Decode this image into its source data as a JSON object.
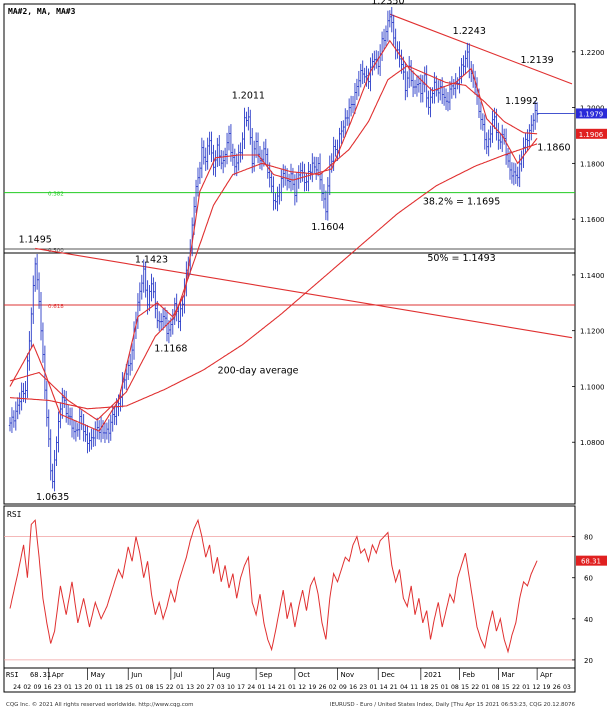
{
  "chart_data": {
    "type": "line",
    "instrument": "EURUSD",
    "header_label": "MA#2,  MA,  MA#3",
    "footer_left": "CQG Inc. © 2021 All rights reserved worldwide. http://www.cqg.com",
    "footer_right": "IEURUSD - Euro / United States Index, Daily [Thu Apr 15 2021 06:53:23, CQG 20.12.8076",
    "price_axis": {
      "ylim": [
        1.06,
        1.235
      ],
      "ticks": [
        "1.2200",
        "1.2000",
        "1.1800",
        "1.1600",
        "1.1400",
        "1.1200",
        "1.1000",
        "1.0800"
      ],
      "tick_values": [
        1.22,
        1.2,
        1.18,
        1.16,
        1.14,
        1.12,
        1.1,
        1.08
      ],
      "current_price_tag": "1.1979",
      "ma_tag": "1.1906",
      "current_price_value": 1.1979,
      "ma_value": 1.1906
    },
    "rsi_axis": {
      "label": "RSI",
      "ylim": [
        18,
        92
      ],
      "ticks": [
        "80",
        "60",
        "40",
        "20"
      ],
      "tick_values": [
        80,
        60,
        40,
        20
      ],
      "current_tag": "68.31",
      "current_value": 68.31,
      "bottom_left_label": "RSI",
      "bottom_left_value": "68.31"
    },
    "time_axis": {
      "n_days": 290,
      "months": [
        {
          "label": "Apr",
          "day": 20
        },
        {
          "label": "May",
          "day": 40
        },
        {
          "label": "Jun",
          "day": 61
        },
        {
          "label": "Jul",
          "day": 83
        },
        {
          "label": "Aug",
          "day": 105
        },
        {
          "label": "Sep",
          "day": 127
        },
        {
          "label": "Oct",
          "day": 147
        },
        {
          "label": "Nov",
          "day": 169
        },
        {
          "label": "Dec",
          "day": 190
        },
        {
          "label": "2021",
          "day": 212
        },
        {
          "label": "Feb",
          "day": 232
        },
        {
          "label": "Mar",
          "day": 252
        },
        {
          "label": "Apr",
          "day": 272
        }
      ],
      "day_labels": [
        "24",
        "02",
        "09",
        "16",
        "23",
        "01",
        "13",
        "20",
        "01",
        "11",
        "18",
        "25",
        "01",
        "08",
        "15",
        "22",
        "01",
        "13",
        "20",
        "27",
        "03",
        "10",
        "17",
        "24",
        "01",
        "14",
        "21",
        "01",
        "12",
        "19",
        "26",
        "02",
        "09",
        "16",
        "23",
        "01",
        "14",
        "21",
        "04",
        "11",
        "18",
        "25",
        "01",
        "08",
        "15",
        "22",
        "01",
        "08",
        "15",
        "22",
        "01",
        "12",
        "19",
        "26",
        "03"
      ]
    },
    "annotations": [
      {
        "text": "1.2350",
        "day": 195,
        "price": 1.235,
        "pos": "above"
      },
      {
        "text": "1.2243",
        "day": 237,
        "price": 1.2243,
        "pos": "above"
      },
      {
        "text": "1.2139",
        "day": 272,
        "price": 1.2139,
        "pos": "above"
      },
      {
        "text": "1.2011",
        "day": 123,
        "price": 1.2011,
        "pos": "above"
      },
      {
        "text": "1.1992",
        "day": 264,
        "price": 1.1992,
        "pos": "above"
      },
      {
        "text": "1.1860",
        "day": 269,
        "price": 1.186,
        "pos": "right"
      },
      {
        "text": "1.1604",
        "day": 164,
        "price": 1.1604,
        "pos": "below"
      },
      {
        "text": "38.2% = 1.1695",
        "day": 233,
        "price": 1.1695,
        "pos": "below"
      },
      {
        "text": "1.1495",
        "day": 13,
        "price": 1.1495,
        "pos": "above"
      },
      {
        "text": "1.1423",
        "day": 73,
        "price": 1.1423,
        "pos": "above"
      },
      {
        "text": "50% = 1.1493",
        "day": 233,
        "price": 1.1493,
        "pos": "below"
      },
      {
        "text": "1.1168",
        "day": 83,
        "price": 1.1168,
        "pos": "below"
      },
      {
        "text": "200-day average",
        "day": 128,
        "price": 1.1057,
        "pos": "center"
      },
      {
        "text": "1.0635",
        "day": 22,
        "price": 1.0635,
        "pos": "below"
      }
    ],
    "fib_lines": [
      {
        "label": "0.382",
        "price": 1.1695,
        "color": "#22cc22"
      },
      {
        "label": "0.500",
        "price": 1.1493,
        "color": "#555555"
      },
      {
        "label": "0.618",
        "price": 1.1292,
        "color": "#dd3333"
      }
    ],
    "trendlines": [
      {
        "name": "upper-downtrend",
        "from": {
          "day": 196,
          "price": 1.2335
        },
        "to": {
          "day": 290,
          "price": 1.2085
        }
      },
      {
        "name": "long-downtrend",
        "from": {
          "day": 13,
          "price": 1.1495
        },
        "to": {
          "day": 290,
          "price": 1.1175
        }
      }
    ],
    "price_anchors": [
      [
        0,
        1.086
      ],
      [
        4,
        1.093
      ],
      [
        8,
        1.1
      ],
      [
        11,
        1.125
      ],
      [
        13,
        1.146
      ],
      [
        15,
        1.13
      ],
      [
        17,
        1.11
      ],
      [
        19,
        1.09
      ],
      [
        21,
        1.07
      ],
      [
        22,
        1.065
      ],
      [
        24,
        1.082
      ],
      [
        27,
        1.096
      ],
      [
        30,
        1.09
      ],
      [
        33,
        1.083
      ],
      [
        36,
        1.088
      ],
      [
        39,
        1.082
      ],
      [
        42,
        1.08
      ],
      [
        45,
        1.086
      ],
      [
        48,
        1.083
      ],
      [
        51,
        1.085
      ],
      [
        54,
        1.09
      ],
      [
        57,
        1.097
      ],
      [
        60,
        1.105
      ],
      [
        63,
        1.112
      ],
      [
        65,
        1.125
      ],
      [
        67,
        1.135
      ],
      [
        69,
        1.14
      ],
      [
        71,
        1.13
      ],
      [
        73,
        1.138
      ],
      [
        75,
        1.127
      ],
      [
        77,
        1.123
      ],
      [
        79,
        1.125
      ],
      [
        81,
        1.12
      ],
      [
        83,
        1.122
      ],
      [
        85,
        1.128
      ],
      [
        87,
        1.125
      ],
      [
        89,
        1.13
      ],
      [
        91,
        1.14
      ],
      [
        93,
        1.15
      ],
      [
        95,
        1.165
      ],
      [
        97,
        1.175
      ],
      [
        99,
        1.185
      ],
      [
        101,
        1.18
      ],
      [
        103,
        1.19
      ],
      [
        105,
        1.178
      ],
      [
        107,
        1.185
      ],
      [
        110,
        1.18
      ],
      [
        113,
        1.19
      ],
      [
        116,
        1.178
      ],
      [
        119,
        1.185
      ],
      [
        121,
        1.195
      ],
      [
        123,
        1.196
      ],
      [
        125,
        1.182
      ],
      [
        127,
        1.187
      ],
      [
        129,
        1.18
      ],
      [
        131,
        1.186
      ],
      [
        133,
        1.177
      ],
      [
        135,
        1.172
      ],
      [
        137,
        1.165
      ],
      [
        139,
        1.17
      ],
      [
        141,
        1.178
      ],
      [
        143,
        1.172
      ],
      [
        145,
        1.176
      ],
      [
        147,
        1.17
      ],
      [
        150,
        1.178
      ],
      [
        153,
        1.173
      ],
      [
        156,
        1.18
      ],
      [
        159,
        1.178
      ],
      [
        161,
        1.17
      ],
      [
        163,
        1.164
      ],
      [
        165,
        1.178
      ],
      [
        167,
        1.186
      ],
      [
        169,
        1.185
      ],
      [
        171,
        1.192
      ],
      [
        173,
        1.196
      ],
      [
        176,
        1.2
      ],
      [
        179,
        1.208
      ],
      [
        182,
        1.213
      ],
      [
        185,
        1.21
      ],
      [
        188,
        1.219
      ],
      [
        190,
        1.215
      ],
      [
        192,
        1.223
      ],
      [
        194,
        1.228
      ],
      [
        196,
        1.233
      ],
      [
        198,
        1.225
      ],
      [
        200,
        1.22
      ],
      [
        202,
        1.215
      ],
      [
        204,
        1.208
      ],
      [
        206,
        1.214
      ],
      [
        208,
        1.206
      ],
      [
        210,
        1.21
      ],
      [
        212,
        1.205
      ],
      [
        214,
        1.211
      ],
      [
        216,
        1.2
      ],
      [
        219,
        1.208
      ],
      [
        222,
        1.206
      ],
      [
        225,
        1.202
      ],
      [
        227,
        1.206
      ],
      [
        230,
        1.208
      ],
      [
        232,
        1.212
      ],
      [
        234,
        1.215
      ],
      [
        236,
        1.22
      ],
      [
        238,
        1.211
      ],
      [
        240,
        1.208
      ],
      [
        242,
        1.2
      ],
      [
        244,
        1.192
      ],
      [
        246,
        1.186
      ],
      [
        248,
        1.192
      ],
      [
        250,
        1.196
      ],
      [
        252,
        1.188
      ],
      [
        254,
        1.19
      ],
      [
        256,
        1.184
      ],
      [
        258,
        1.178
      ],
      [
        260,
        1.175
      ],
      [
        262,
        1.176
      ],
      [
        264,
        1.183
      ],
      [
        266,
        1.187
      ],
      [
        268,
        1.192
      ],
      [
        270,
        1.196
      ],
      [
        272,
        1.1979
      ]
    ],
    "ma_short_anchors": [
      [
        0,
        1.1
      ],
      [
        12,
        1.115
      ],
      [
        18,
        1.105
      ],
      [
        26,
        1.09
      ],
      [
        36,
        1.087
      ],
      [
        46,
        1.084
      ],
      [
        56,
        1.095
      ],
      [
        66,
        1.125
      ],
      [
        76,
        1.13
      ],
      [
        84,
        1.125
      ],
      [
        90,
        1.133
      ],
      [
        98,
        1.17
      ],
      [
        106,
        1.182
      ],
      [
        118,
        1.183
      ],
      [
        128,
        1.183
      ],
      [
        136,
        1.176
      ],
      [
        146,
        1.174
      ],
      [
        156,
        1.176
      ],
      [
        166,
        1.178
      ],
      [
        176,
        1.195
      ],
      [
        186,
        1.213
      ],
      [
        196,
        1.224
      ],
      [
        206,
        1.214
      ],
      [
        218,
        1.206
      ],
      [
        230,
        1.209
      ],
      [
        238,
        1.214
      ],
      [
        246,
        1.196
      ],
      [
        254,
        1.19
      ],
      [
        262,
        1.18
      ],
      [
        272,
        1.189
      ]
    ],
    "ma_mid_anchors": [
      [
        0,
        1.102
      ],
      [
        15,
        1.105
      ],
      [
        30,
        1.095
      ],
      [
        45,
        1.088
      ],
      [
        60,
        1.098
      ],
      [
        75,
        1.118
      ],
      [
        85,
        1.125
      ],
      [
        95,
        1.145
      ],
      [
        105,
        1.165
      ],
      [
        115,
        1.176
      ],
      [
        130,
        1.18
      ],
      [
        145,
        1.177
      ],
      [
        160,
        1.176
      ],
      [
        175,
        1.185
      ],
      [
        185,
        1.195
      ],
      [
        195,
        1.21
      ],
      [
        205,
        1.215
      ],
      [
        215,
        1.212
      ],
      [
        225,
        1.209
      ],
      [
        235,
        1.208
      ],
      [
        245,
        1.202
      ],
      [
        255,
        1.195
      ],
      [
        265,
        1.191
      ],
      [
        272,
        1.1906
      ]
    ],
    "ma_long_anchors": [
      [
        0,
        1.096
      ],
      [
        20,
        1.095
      ],
      [
        40,
        1.092
      ],
      [
        60,
        1.093
      ],
      [
        80,
        1.099
      ],
      [
        100,
        1.106
      ],
      [
        120,
        1.115
      ],
      [
        140,
        1.126
      ],
      [
        160,
        1.138
      ],
      [
        180,
        1.15
      ],
      [
        200,
        1.162
      ],
      [
        220,
        1.172
      ],
      [
        240,
        1.179
      ],
      [
        255,
        1.183
      ],
      [
        272,
        1.187
      ]
    ],
    "rsi_anchors": [
      [
        0,
        45
      ],
      [
        4,
        62
      ],
      [
        7,
        76
      ],
      [
        9,
        60
      ],
      [
        11,
        86
      ],
      [
        13,
        88
      ],
      [
        15,
        70
      ],
      [
        17,
        50
      ],
      [
        19,
        38
      ],
      [
        21,
        28
      ],
      [
        23,
        34
      ],
      [
        26,
        56
      ],
      [
        29,
        42
      ],
      [
        32,
        58
      ],
      [
        35,
        38
      ],
      [
        38,
        50
      ],
      [
        41,
        36
      ],
      [
        44,
        48
      ],
      [
        47,
        40
      ],
      [
        50,
        46
      ],
      [
        53,
        55
      ],
      [
        56,
        64
      ],
      [
        58,
        60
      ],
      [
        61,
        75
      ],
      [
        63,
        68
      ],
      [
        65,
        80
      ],
      [
        67,
        72
      ],
      [
        69,
        60
      ],
      [
        71,
        68
      ],
      [
        73,
        52
      ],
      [
        75,
        42
      ],
      [
        77,
        48
      ],
      [
        79,
        40
      ],
      [
        81,
        46
      ],
      [
        83,
        54
      ],
      [
        85,
        48
      ],
      [
        87,
        58
      ],
      [
        89,
        64
      ],
      [
        91,
        70
      ],
      [
        93,
        78
      ],
      [
        95,
        84
      ],
      [
        97,
        88
      ],
      [
        99,
        80
      ],
      [
        101,
        70
      ],
      [
        103,
        76
      ],
      [
        105,
        62
      ],
      [
        107,
        70
      ],
      [
        109,
        58
      ],
      [
        111,
        66
      ],
      [
        113,
        55
      ],
      [
        115,
        62
      ],
      [
        117,
        50
      ],
      [
        119,
        60
      ],
      [
        121,
        66
      ],
      [
        123,
        70
      ],
      [
        125,
        48
      ],
      [
        127,
        42
      ],
      [
        129,
        52
      ],
      [
        131,
        38
      ],
      [
        133,
        30
      ],
      [
        135,
        25
      ],
      [
        137,
        34
      ],
      [
        139,
        44
      ],
      [
        141,
        54
      ],
      [
        143,
        40
      ],
      [
        145,
        48
      ],
      [
        147,
        36
      ],
      [
        149,
        46
      ],
      [
        151,
        54
      ],
      [
        153,
        44
      ],
      [
        155,
        56
      ],
      [
        157,
        60
      ],
      [
        159,
        52
      ],
      [
        161,
        38
      ],
      [
        163,
        30
      ],
      [
        165,
        50
      ],
      [
        167,
        62
      ],
      [
        169,
        58
      ],
      [
        171,
        64
      ],
      [
        173,
        70
      ],
      [
        175,
        68
      ],
      [
        177,
        76
      ],
      [
        179,
        80
      ],
      [
        181,
        72
      ],
      [
        183,
        74
      ],
      [
        185,
        68
      ],
      [
        187,
        76
      ],
      [
        189,
        72
      ],
      [
        191,
        78
      ],
      [
        193,
        80
      ],
      [
        195,
        82
      ],
      [
        197,
        66
      ],
      [
        199,
        58
      ],
      [
        201,
        64
      ],
      [
        203,
        50
      ],
      [
        205,
        46
      ],
      [
        207,
        56
      ],
      [
        209,
        42
      ],
      [
        211,
        50
      ],
      [
        213,
        38
      ],
      [
        215,
        44
      ],
      [
        217,
        30
      ],
      [
        219,
        40
      ],
      [
        221,
        48
      ],
      [
        223,
        36
      ],
      [
        225,
        44
      ],
      [
        227,
        52
      ],
      [
        229,
        48
      ],
      [
        231,
        60
      ],
      [
        233,
        66
      ],
      [
        235,
        72
      ],
      [
        237,
        60
      ],
      [
        239,
        48
      ],
      [
        241,
        36
      ],
      [
        243,
        30
      ],
      [
        245,
        26
      ],
      [
        247,
        36
      ],
      [
        249,
        44
      ],
      [
        251,
        34
      ],
      [
        253,
        40
      ],
      [
        255,
        30
      ],
      [
        257,
        24
      ],
      [
        259,
        32
      ],
      [
        261,
        38
      ],
      [
        263,
        50
      ],
      [
        265,
        58
      ],
      [
        267,
        56
      ],
      [
        269,
        62
      ],
      [
        272,
        68.31
      ]
    ]
  }
}
